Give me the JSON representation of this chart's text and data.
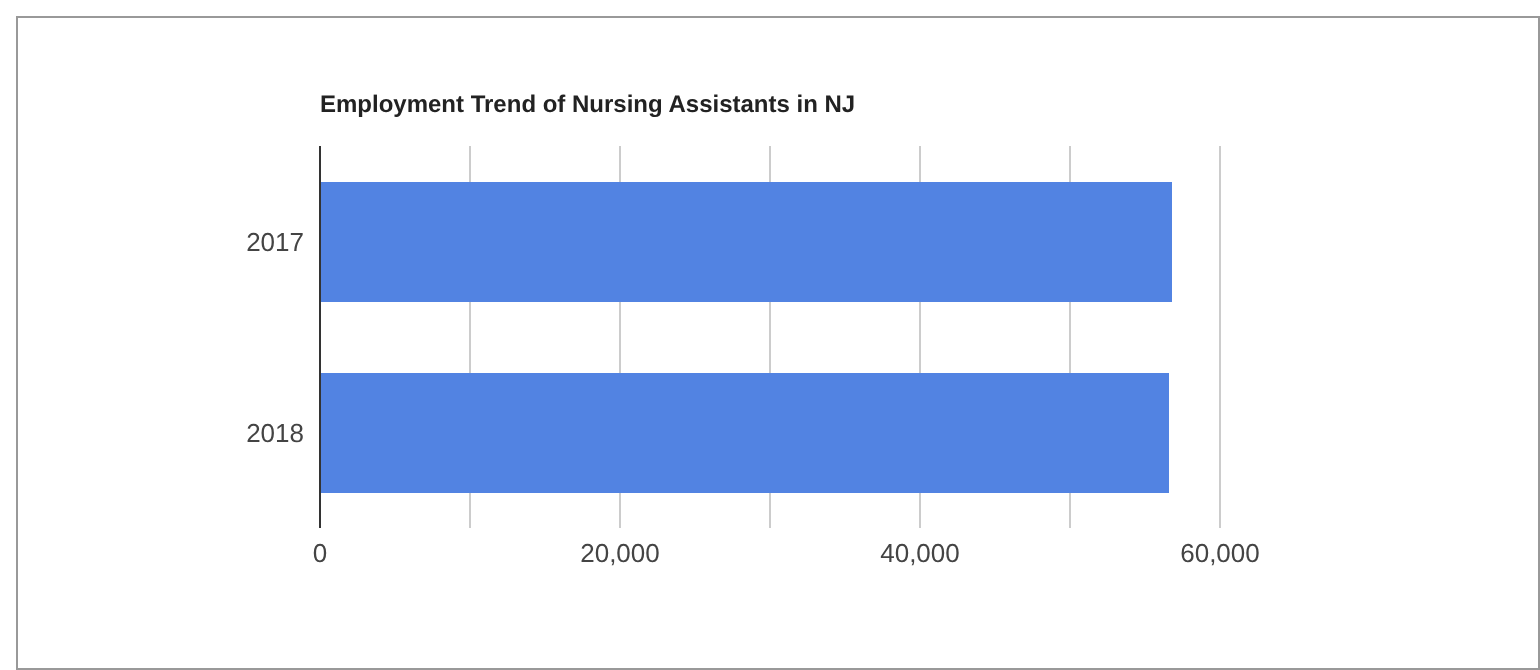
{
  "chart_data": {
    "type": "bar",
    "orientation": "horizontal",
    "title": "Employment Trend of Nursing Assistants in NJ",
    "categories": [
      "2017",
      "2018"
    ],
    "series": [
      {
        "color": "#5283e2",
        "values": [
          56800,
          56600
        ]
      }
    ],
    "xlim": [
      0,
      60000
    ],
    "xticks": [
      0,
      {
        "value": 10000,
        "label": null
      },
      "20,000",
      {
        "value": 30000,
        "label": null
      },
      {
        "value": 40000,
        "label": "40,000"
      },
      {
        "value": 50000,
        "label": null
      },
      {
        "value": 60000,
        "label": "60,000"
      }
    ],
    "grid": "x",
    "legend": false
  }
}
